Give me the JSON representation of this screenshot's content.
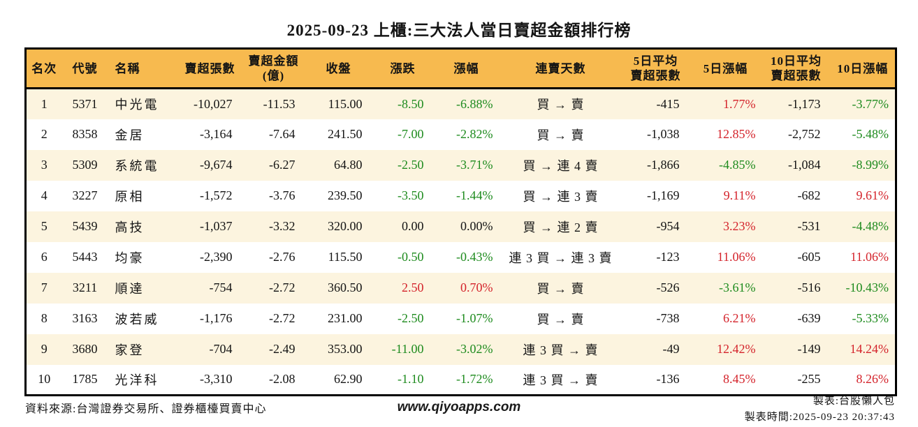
{
  "title": "2025-09-23 上櫃:三大法人當日賣超金額排行榜",
  "colors": {
    "up_red": "#d4232b",
    "down_green": "#1e8b1e",
    "header_bg": "#f7ba4f",
    "stripe_bg": "#fcf4df",
    "border": "#000000",
    "text": "#141414"
  },
  "table": {
    "columns": [
      {
        "key": "rank",
        "label_lines": [
          "名次"
        ]
      },
      {
        "key": "code",
        "label_lines": [
          "代號"
        ]
      },
      {
        "key": "name",
        "label_lines": [
          "名稱"
        ]
      },
      {
        "key": "net-sell-volume",
        "label_lines": [
          "賣超張數"
        ]
      },
      {
        "key": "net-sell-amount",
        "label_lines": [
          "賣超金額",
          "(億)"
        ]
      },
      {
        "key": "close",
        "label_lines": [
          "收盤"
        ]
      },
      {
        "key": "change",
        "label_lines": [
          "漲跌"
        ]
      },
      {
        "key": "change-pct",
        "label_lines": [
          "漲幅"
        ]
      },
      {
        "key": "streak",
        "label_lines": [
          "連賣天數"
        ]
      },
      {
        "key": "avg5-net-sell",
        "label_lines": [
          "5日平均",
          "賣超張數"
        ]
      },
      {
        "key": "pct5",
        "label_lines": [
          "5日漲幅"
        ]
      },
      {
        "key": "avg10-net-sell",
        "label_lines": [
          "10日平均",
          "賣超張數"
        ]
      },
      {
        "key": "pct10",
        "label_lines": [
          "10日漲幅"
        ]
      }
    ],
    "rows": [
      {
        "cells": [
          {
            "t": "1"
          },
          {
            "t": "5371"
          },
          {
            "t": "中光電"
          },
          {
            "t": "-10,027"
          },
          {
            "t": "-11.53"
          },
          {
            "t": "115.00"
          },
          {
            "t": "-8.50",
            "c": "down"
          },
          {
            "t": "-6.88%",
            "c": "down"
          },
          {
            "t": "買 → 賣"
          },
          {
            "t": "-415"
          },
          {
            "t": "1.77%",
            "c": "up"
          },
          {
            "t": "-1,173"
          },
          {
            "t": "-3.77%",
            "c": "down"
          }
        ]
      },
      {
        "cells": [
          {
            "t": "2"
          },
          {
            "t": "8358"
          },
          {
            "t": "金居"
          },
          {
            "t": "-3,164"
          },
          {
            "t": "-7.64"
          },
          {
            "t": "241.50"
          },
          {
            "t": "-7.00",
            "c": "down"
          },
          {
            "t": "-2.82%",
            "c": "down"
          },
          {
            "t": "買 → 賣"
          },
          {
            "t": "-1,038"
          },
          {
            "t": "12.85%",
            "c": "up"
          },
          {
            "t": "-2,752"
          },
          {
            "t": "-5.48%",
            "c": "down"
          }
        ]
      },
      {
        "cells": [
          {
            "t": "3"
          },
          {
            "t": "5309"
          },
          {
            "t": "系統電"
          },
          {
            "t": "-9,674"
          },
          {
            "t": "-6.27"
          },
          {
            "t": "64.80"
          },
          {
            "t": "-2.50",
            "c": "down"
          },
          {
            "t": "-3.71%",
            "c": "down"
          },
          {
            "t": "買 → 連 4 賣"
          },
          {
            "t": "-1,866"
          },
          {
            "t": "-4.85%",
            "c": "down"
          },
          {
            "t": "-1,084"
          },
          {
            "t": "-8.99%",
            "c": "down"
          }
        ]
      },
      {
        "cells": [
          {
            "t": "4"
          },
          {
            "t": "3227"
          },
          {
            "t": "原相"
          },
          {
            "t": "-1,572"
          },
          {
            "t": "-3.76"
          },
          {
            "t": "239.50"
          },
          {
            "t": "-3.50",
            "c": "down"
          },
          {
            "t": "-1.44%",
            "c": "down"
          },
          {
            "t": "買 → 連 3 賣"
          },
          {
            "t": "-1,169"
          },
          {
            "t": "9.11%",
            "c": "up"
          },
          {
            "t": "-682"
          },
          {
            "t": "9.61%",
            "c": "up"
          }
        ]
      },
      {
        "cells": [
          {
            "t": "5"
          },
          {
            "t": "5439"
          },
          {
            "t": "高技"
          },
          {
            "t": "-1,037"
          },
          {
            "t": "-3.32"
          },
          {
            "t": "320.00"
          },
          {
            "t": "0.00"
          },
          {
            "t": "0.00%"
          },
          {
            "t": "買 → 連 2 賣"
          },
          {
            "t": "-954"
          },
          {
            "t": "3.23%",
            "c": "up"
          },
          {
            "t": "-531"
          },
          {
            "t": "-4.48%",
            "c": "down"
          }
        ]
      },
      {
        "cells": [
          {
            "t": "6"
          },
          {
            "t": "5443"
          },
          {
            "t": "均豪"
          },
          {
            "t": "-2,390"
          },
          {
            "t": "-2.76"
          },
          {
            "t": "115.50"
          },
          {
            "t": "-0.50",
            "c": "down"
          },
          {
            "t": "-0.43%",
            "c": "down"
          },
          {
            "t": "連 3 買 → 連 3 賣"
          },
          {
            "t": "-123"
          },
          {
            "t": "11.06%",
            "c": "up"
          },
          {
            "t": "-605"
          },
          {
            "t": "11.06%",
            "c": "up"
          }
        ]
      },
      {
        "cells": [
          {
            "t": "7"
          },
          {
            "t": "3211"
          },
          {
            "t": "順達"
          },
          {
            "t": "-754"
          },
          {
            "t": "-2.72"
          },
          {
            "t": "360.50"
          },
          {
            "t": "2.50",
            "c": "up"
          },
          {
            "t": "0.70%",
            "c": "up"
          },
          {
            "t": "買 → 賣"
          },
          {
            "t": "-526"
          },
          {
            "t": "-3.61%",
            "c": "down"
          },
          {
            "t": "-516"
          },
          {
            "t": "-10.43%",
            "c": "down"
          }
        ]
      },
      {
        "cells": [
          {
            "t": "8"
          },
          {
            "t": "3163"
          },
          {
            "t": "波若威"
          },
          {
            "t": "-1,176"
          },
          {
            "t": "-2.72"
          },
          {
            "t": "231.00"
          },
          {
            "t": "-2.50",
            "c": "down"
          },
          {
            "t": "-1.07%",
            "c": "down"
          },
          {
            "t": "買 → 賣"
          },
          {
            "t": "-738"
          },
          {
            "t": "6.21%",
            "c": "up"
          },
          {
            "t": "-639"
          },
          {
            "t": "-5.33%",
            "c": "down"
          }
        ]
      },
      {
        "cells": [
          {
            "t": "9"
          },
          {
            "t": "3680"
          },
          {
            "t": "家登"
          },
          {
            "t": "-704"
          },
          {
            "t": "-2.49"
          },
          {
            "t": "353.00"
          },
          {
            "t": "-11.00",
            "c": "down"
          },
          {
            "t": "-3.02%",
            "c": "down"
          },
          {
            "t": "連 3 買 → 賣"
          },
          {
            "t": "-49"
          },
          {
            "t": "12.42%",
            "c": "up"
          },
          {
            "t": "-149"
          },
          {
            "t": "14.24%",
            "c": "up"
          }
        ]
      },
      {
        "cells": [
          {
            "t": "10"
          },
          {
            "t": "1785"
          },
          {
            "t": "光洋科"
          },
          {
            "t": "-3,310"
          },
          {
            "t": "-2.08"
          },
          {
            "t": "62.90"
          },
          {
            "t": "-1.10",
            "c": "down"
          },
          {
            "t": "-1.72%",
            "c": "down"
          },
          {
            "t": "連 3 買 → 賣"
          },
          {
            "t": "-136"
          },
          {
            "t": "8.45%",
            "c": "up"
          },
          {
            "t": "-255"
          },
          {
            "t": "8.26%",
            "c": "up"
          }
        ]
      }
    ]
  },
  "footer": {
    "source": "資料來源:台灣證券交易所、證券櫃檯買賣中心",
    "website": "www.qiyoapps.com",
    "author": "製表:台股懶人包",
    "generated_at": "製表時間:2025-09-23 20:37:43"
  },
  "chart_data": {
    "type": "table",
    "title": "2025-09-23 上櫃:三大法人當日賣超金額排行榜",
    "columns": [
      "名次",
      "代號",
      "名稱",
      "賣超張數",
      "賣超金額(億)",
      "收盤",
      "漲跌",
      "漲幅",
      "連賣天數",
      "5日平均賣超張數",
      "5日漲幅",
      "10日平均賣超張數",
      "10日漲幅"
    ],
    "rows": [
      [
        1,
        "5371",
        "中光電",
        -10027,
        -11.53,
        115.0,
        -8.5,
        -6.88,
        "買 → 賣",
        -415,
        1.77,
        -1173,
        -3.77
      ],
      [
        2,
        "8358",
        "金居",
        -3164,
        -7.64,
        241.5,
        -7.0,
        -2.82,
        "買 → 賣",
        -1038,
        12.85,
        -2752,
        -5.48
      ],
      [
        3,
        "5309",
        "系統電",
        -9674,
        -6.27,
        64.8,
        -2.5,
        -3.71,
        "買 → 連 4 賣",
        -1866,
        -4.85,
        -1084,
        -8.99
      ],
      [
        4,
        "3227",
        "原相",
        -1572,
        -3.76,
        239.5,
        -3.5,
        -1.44,
        "買 → 連 3 賣",
        -1169,
        9.11,
        -682,
        9.61
      ],
      [
        5,
        "5439",
        "高技",
        -1037,
        -3.32,
        320.0,
        0.0,
        0.0,
        "買 → 連 2 賣",
        -954,
        3.23,
        -531,
        -4.48
      ],
      [
        6,
        "5443",
        "均豪",
        -2390,
        -2.76,
        115.5,
        -0.5,
        -0.43,
        "連 3 買 → 連 3 賣",
        -123,
        11.06,
        -605,
        11.06
      ],
      [
        7,
        "3211",
        "順達",
        -754,
        -2.72,
        360.5,
        2.5,
        0.7,
        "買 → 賣",
        -526,
        -3.61,
        -516,
        -10.43
      ],
      [
        8,
        "3163",
        "波若威",
        -1176,
        -2.72,
        231.0,
        -2.5,
        -1.07,
        "買 → 賣",
        -738,
        6.21,
        -639,
        -5.33
      ],
      [
        9,
        "3680",
        "家登",
        -704,
        -2.49,
        353.0,
        -11.0,
        -3.02,
        "連 3 買 → 賣",
        -49,
        12.42,
        -149,
        14.24
      ],
      [
        10,
        "1785",
        "光洋科",
        -3310,
        -2.08,
        62.9,
        -1.1,
        -1.72,
        "連 3 買 → 賣",
        -136,
        8.45,
        -255,
        8.26
      ]
    ],
    "notes": "percent columns are % values; red = up, green = down (Taiwan convention)"
  }
}
